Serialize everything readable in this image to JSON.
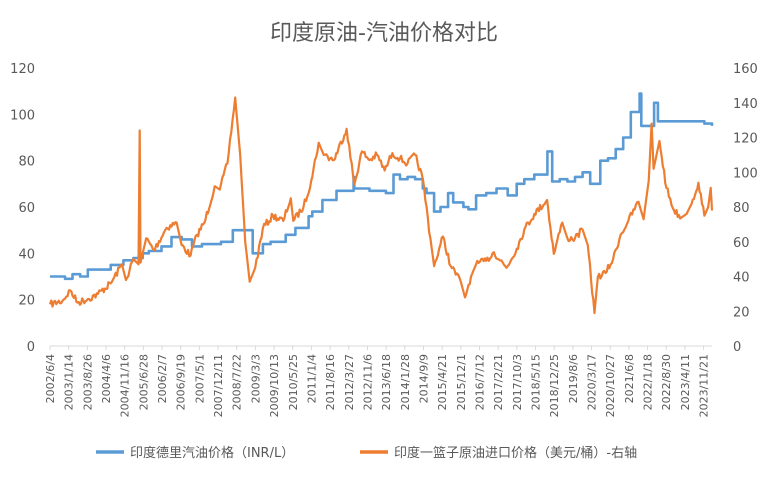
{
  "chart_data": {
    "type": "line",
    "title": "印度原油-汽油价格对比",
    "left_axis": {
      "min": 0,
      "max": 120,
      "ticks": [
        0,
        20,
        40,
        60,
        80,
        100,
        120
      ]
    },
    "right_axis": {
      "min": 0,
      "max": 160,
      "ticks": [
        0,
        20,
        40,
        60,
        80,
        100,
        120,
        140,
        160
      ]
    },
    "x_range": [
      "2002/6/4",
      "2024/3/1"
    ],
    "x_ticks": [
      "2002/6/4",
      "2003/1/14",
      "2003/8/26",
      "2004/4/6",
      "2004/11/16",
      "2005/6/28",
      "2006/2/7",
      "2006/9/19",
      "2007/5/1",
      "2007/12/11",
      "2008/7/22",
      "2009/3/3",
      "2009/10/13",
      "2010/5/25",
      "2011/1/4",
      "2011/8/16",
      "2012/3/27",
      "2012/11/6",
      "2013/6/18",
      "2014/1/28",
      "2014/9/9",
      "2015/4/21",
      "2015/12/1",
      "2016/7/12",
      "2017/2/21",
      "2017/10/3",
      "2018/5/15",
      "2018/12/25",
      "2019/8/6",
      "2020/3/17",
      "2020/10/27",
      "2021/6/8",
      "2022/1/18",
      "2022/8/30",
      "2023/4/11",
      "2023/11/21"
    ],
    "legend_position": "bottom",
    "series": [
      {
        "name": "印度德里汽油价格（INR/L）",
        "axis": "left",
        "color": "#5B9BD5",
        "points": [
          [
            "2002/6/4",
            30
          ],
          [
            "2002/12/1",
            29
          ],
          [
            "2003/3/1",
            31
          ],
          [
            "2003/6/1",
            30
          ],
          [
            "2003/9/1",
            33
          ],
          [
            "2004/1/1",
            33
          ],
          [
            "2004/6/1",
            35
          ],
          [
            "2004/11/1",
            37
          ],
          [
            "2005/3/1",
            38
          ],
          [
            "2005/6/20",
            40
          ],
          [
            "2005/9/1",
            41
          ],
          [
            "2006/2/1",
            43
          ],
          [
            "2006/6/1",
            47
          ],
          [
            "2006/10/1",
            46
          ],
          [
            "2007/2/1",
            43
          ],
          [
            "2007/6/1",
            44
          ],
          [
            "2007/12/1",
            44
          ],
          [
            "2008/1/15",
            45
          ],
          [
            "2008/6/5",
            50
          ],
          [
            "2008/12/1",
            50
          ],
          [
            "2009/1/29",
            40
          ],
          [
            "2009/6/1",
            44
          ],
          [
            "2009/9/1",
            45
          ],
          [
            "2010/3/1",
            48
          ],
          [
            "2010/6/26",
            51
          ],
          [
            "2010/12/1",
            56
          ],
          [
            "2011/1/15",
            58
          ],
          [
            "2011/5/15",
            63
          ],
          [
            "2011/7/1",
            63
          ],
          [
            "2011/11/1",
            67
          ],
          [
            "2012/5/24",
            73
          ],
          [
            "2012/6/1",
            68
          ],
          [
            "2012/12/1",
            67
          ],
          [
            "2013/3/1",
            67
          ],
          [
            "2013/6/15",
            66
          ],
          [
            "2013/9/14",
            74
          ],
          [
            "2013/12/1",
            72
          ],
          [
            "2014/3/1",
            73
          ],
          [
            "2014/6/1",
            72
          ],
          [
            "2014/9/1",
            68
          ],
          [
            "2014/10/15",
            66
          ],
          [
            "2015/1/15",
            58
          ],
          [
            "2015/4/1",
            60
          ],
          [
            "2015/7/1",
            66
          ],
          [
            "2015/9/1",
            62
          ],
          [
            "2016/1/1",
            60
          ],
          [
            "2016/3/1",
            59
          ],
          [
            "2016/6/1",
            65
          ],
          [
            "2016/10/1",
            66
          ],
          [
            "2017/2/1",
            68
          ],
          [
            "2017/6/15",
            65
          ],
          [
            "2017/10/1",
            70
          ],
          [
            "2018/1/1",
            72
          ],
          [
            "2018/5/1",
            74
          ],
          [
            "2018/10/4",
            84
          ],
          [
            "2018/12/1",
            71
          ],
          [
            "2019/3/1",
            72
          ],
          [
            "2019/6/1",
            71
          ],
          [
            "2019/9/1",
            73
          ],
          [
            "2019/12/1",
            75
          ],
          [
            "2020/3/1",
            70
          ],
          [
            "2020/5/1",
            70
          ],
          [
            "2020/6/30",
            80
          ],
          [
            "2020/10/1",
            81
          ],
          [
            "2021/1/1",
            85
          ],
          [
            "2021/4/1",
            90
          ],
          [
            "2021/7/1",
            101
          ],
          [
            "2021/10/15",
            109
          ],
          [
            "2021/11/4",
            95
          ],
          [
            "2022/3/1",
            95
          ],
          [
            "2022/4/6",
            105
          ],
          [
            "2022/5/22",
            97
          ],
          [
            "2023/6/1",
            97
          ],
          [
            "2023/12/1",
            96
          ],
          [
            "2024/3/1",
            95
          ]
        ]
      },
      {
        "name": "印度一篮子原油进口价格（美元/桶）-右轴",
        "axis": "right",
        "color": "#ED7D31",
        "points": [
          [
            "2002/6/4",
            24
          ],
          [
            "2002/11/1",
            26
          ],
          [
            "2003/2/1",
            32
          ],
          [
            "2003/5/1",
            25
          ],
          [
            "2003/9/1",
            27
          ],
          [
            "2004/1/1",
            30
          ],
          [
            "2004/6/1",
            36
          ],
          [
            "2004/10/15",
            47
          ],
          [
            "2004/12/1",
            38
          ],
          [
            "2005/3/1",
            50
          ],
          [
            "2005/5/1",
            47
          ],
          [
            "2005/5/15",
            124
          ],
          [
            "2005/5/25",
            48
          ],
          [
            "2005/8/1",
            62
          ],
          [
            "2005/11/1",
            55
          ],
          [
            "2006/4/1",
            68
          ],
          [
            "2006/8/1",
            71
          ],
          [
            "2006/10/1",
            58
          ],
          [
            "2007/1/15",
            52
          ],
          [
            "2007/4/1",
            64
          ],
          [
            "2007/7/1",
            71
          ],
          [
            "2007/11/1",
            92
          ],
          [
            "2008/1/1",
            90
          ],
          [
            "2008/4/1",
            105
          ],
          [
            "2008/7/3",
            143
          ],
          [
            "2008/9/1",
            110
          ],
          [
            "2008/11/1",
            60
          ],
          [
            "2008/12/25",
            37
          ],
          [
            "2009/3/1",
            45
          ],
          [
            "2009/6/1",
            68
          ],
          [
            "2009/10/1",
            75
          ],
          [
            "2010/2/1",
            72
          ],
          [
            "2010/5/1",
            85
          ],
          [
            "2010/6/1",
            72
          ],
          [
            "2010/10/1",
            80
          ],
          [
            "2011/1/1",
            95
          ],
          [
            "2011/4/1",
            117
          ],
          [
            "2011/6/1",
            110
          ],
          [
            "2011/10/1",
            107
          ],
          [
            "2012/3/1",
            125
          ],
          [
            "2012/6/1",
            93
          ],
          [
            "2012/9/1",
            112
          ],
          [
            "2012/12/1",
            107
          ],
          [
            "2013/3/1",
            110
          ],
          [
            "2013/6/1",
            101
          ],
          [
            "2013/9/1",
            111
          ],
          [
            "2013/12/1",
            108
          ],
          [
            "2014/3/1",
            105
          ],
          [
            "2014/6/1",
            110
          ],
          [
            "2014/9/1",
            96
          ],
          [
            "2014/12/1",
            62
          ],
          [
            "2015/1/15",
            46
          ],
          [
            "2015/5/1",
            63
          ],
          [
            "2015/8/1",
            46
          ],
          [
            "2015/12/1",
            37
          ],
          [
            "2016/1/20",
            28
          ],
          [
            "2016/4/1",
            40
          ],
          [
            "2016/6/1",
            47
          ],
          [
            "2016/10/1",
            49
          ],
          [
            "2017/1/1",
            54
          ],
          [
            "2017/6/1",
            45
          ],
          [
            "2017/10/1",
            56
          ],
          [
            "2018/1/1",
            67
          ],
          [
            "2018/5/1",
            76
          ],
          [
            "2018/10/1",
            84
          ],
          [
            "2018/12/20",
            53
          ],
          [
            "2019/4/1",
            71
          ],
          [
            "2019/6/1",
            62
          ],
          [
            "2019/9/1",
            62
          ],
          [
            "2019/12/1",
            67
          ],
          [
            "2020/2/1",
            58
          ],
          [
            "2020/4/21",
            19
          ],
          [
            "2020/6/1",
            40
          ],
          [
            "2020/9/1",
            42
          ],
          [
            "2020/12/1",
            50
          ],
          [
            "2021/3/1",
            64
          ],
          [
            "2021/6/1",
            72
          ],
          [
            "2021/10/1",
            83
          ],
          [
            "2021/12/1",
            73
          ],
          [
            "2022/2/1",
            95
          ],
          [
            "2022/3/8",
            128
          ],
          [
            "2022/4/1",
            102
          ],
          [
            "2022/6/10",
            118
          ],
          [
            "2022/9/1",
            91
          ],
          [
            "2022/12/1",
            78
          ],
          [
            "2023/3/1",
            74
          ],
          [
            "2023/5/1",
            76
          ],
          [
            "2023/7/1",
            82
          ],
          [
            "2023/9/20",
            94
          ],
          [
            "2023/12/1",
            75
          ],
          [
            "2024/1/15",
            80
          ],
          [
            "2024/2/15",
            91
          ],
          [
            "2024/3/1",
            78
          ]
        ]
      }
    ]
  }
}
